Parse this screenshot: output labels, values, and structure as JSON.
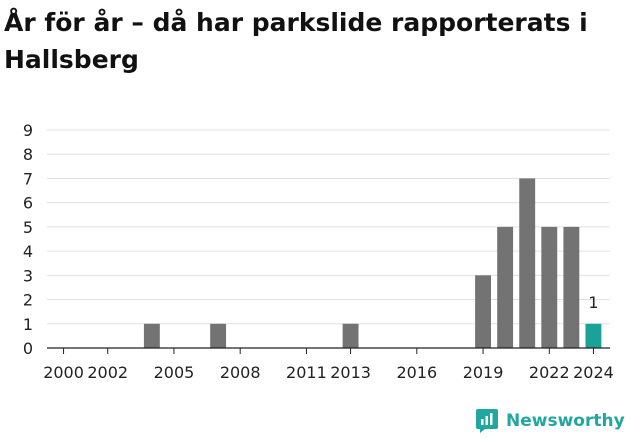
{
  "title": "År för år – då har parkslide rapporterats i Hallsberg",
  "brand": {
    "name": "Newsworthy"
  },
  "colors": {
    "bar": "#737373",
    "highlight": "#1aa198",
    "grid": "#e0e0e0",
    "axis": "#222222",
    "brand": "#21a6a1"
  },
  "chart_data": {
    "type": "bar",
    "title": "År för år – då har parkslide rapporterats i Hallsberg",
    "xlabel": "",
    "ylabel": "",
    "ylim": [
      0,
      9
    ],
    "yticks": [
      "0",
      "1",
      "2",
      "3",
      "4",
      "5",
      "6",
      "7",
      "8",
      "9"
    ],
    "categories": [
      2000,
      2001,
      2002,
      2003,
      2004,
      2005,
      2006,
      2007,
      2008,
      2009,
      2010,
      2011,
      2012,
      2013,
      2014,
      2015,
      2016,
      2017,
      2018,
      2019,
      2020,
      2021,
      2022,
      2023,
      2024
    ],
    "values": [
      0,
      0,
      0,
      0,
      1,
      0,
      0,
      1,
      0,
      0,
      0,
      0,
      0,
      1,
      0,
      0,
      0,
      0,
      0,
      3,
      5,
      7,
      5,
      5,
      1
    ],
    "xticks": [
      "2000",
      "2002",
      "2005",
      "2008",
      "2011",
      "2013",
      "2016",
      "2019",
      "2022",
      "2024"
    ],
    "highlight": {
      "category": 2024,
      "label": "1"
    },
    "grid": true,
    "legend": "none"
  }
}
